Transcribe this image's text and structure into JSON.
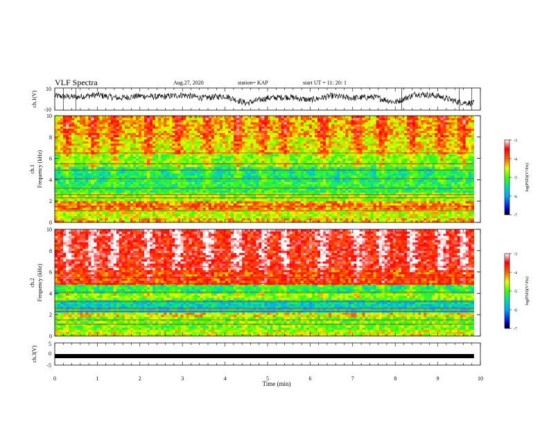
{
  "header": {
    "title": "VLF Spectra",
    "date": "Aug.27, 2020",
    "station": "station= KAP",
    "start_ut": "start  UT =   11: 20: 1"
  },
  "chart_data": [
    {
      "type": "line",
      "name": "ch1-waveform",
      "ylabel": "ch.1(V)",
      "ylim": [
        -10,
        10
      ],
      "yticks": [
        "10",
        "-10"
      ],
      "xlim": [
        0,
        10
      ],
      "values_note_x_min": [
        0,
        9.85
      ],
      "envelope": [
        {
          "x": 0.0,
          "y": 3
        },
        {
          "x": 0.5,
          "y": 2
        },
        {
          "x": 1.0,
          "y": 4
        },
        {
          "x": 1.5,
          "y": 1
        },
        {
          "x": 2.0,
          "y": 3
        },
        {
          "x": 2.5,
          "y": 2
        },
        {
          "x": 3.0,
          "y": 4
        },
        {
          "x": 3.5,
          "y": 1
        },
        {
          "x": 4.0,
          "y": 3
        },
        {
          "x": 4.5,
          "y": -4
        },
        {
          "x": 5.0,
          "y": 1
        },
        {
          "x": 5.5,
          "y": 2
        },
        {
          "x": 6.0,
          "y": -1
        },
        {
          "x": 6.5,
          "y": 3
        },
        {
          "x": 7.0,
          "y": 1
        },
        {
          "x": 7.5,
          "y": 2
        },
        {
          "x": 8.0,
          "y": -3
        },
        {
          "x": 8.5,
          "y": 5
        },
        {
          "x": 9.0,
          "y": 3
        },
        {
          "x": 9.5,
          "y": -3
        },
        {
          "x": 9.85,
          "y": -4
        }
      ]
    },
    {
      "type": "heatmap",
      "name": "ch1-spectrogram",
      "ylabel": "ch.1\nFrequency  (kHz)",
      "ylim": [
        0,
        10
      ],
      "yticks": [
        "0",
        "2",
        "4",
        "6",
        "8",
        "10"
      ],
      "xlim": [
        0,
        10
      ],
      "data_end_min": 9.85,
      "colorbar": {
        "label": "log(PSD)(V²/Hz)",
        "range": [
          -7,
          -3
        ],
        "ticks": [
          "-3",
          "-4",
          "-5",
          "-6",
          "-7"
        ]
      },
      "bands_log_psd": [
        {
          "f": [
            0,
            0.5
          ],
          "v": -4.3
        },
        {
          "f": [
            0.5,
            1.3
          ],
          "v": -4.6
        },
        {
          "f": [
            1.3,
            2.0
          ],
          "v": -4.1
        },
        {
          "f": [
            2.0,
            2.8
          ],
          "v": -4.8
        },
        {
          "f": [
            2.8,
            3.8
          ],
          "v": -5.2
        },
        {
          "f": [
            3.8,
            5.2
          ],
          "v": -5.4
        },
        {
          "f": [
            5.2,
            6.5
          ],
          "v": -4.9
        },
        {
          "f": [
            6.5,
            8.0
          ],
          "v": -4.5
        },
        {
          "f": [
            8.0,
            10.0
          ],
          "v": -4.3
        }
      ],
      "bursts_x_min": [
        0.3,
        0.9,
        1.4,
        2.2,
        2.9,
        3.6,
        4.3,
        4.9,
        5.4,
        6.3,
        7.1,
        7.7,
        8.4,
        9.1,
        9.6
      ]
    },
    {
      "type": "heatmap",
      "name": "ch2-spectrogram",
      "ylabel": "ch.2\nFrequency  (kHz)",
      "ylim": [
        0,
        10
      ],
      "yticks": [
        "0",
        "2",
        "4",
        "6",
        "8",
        "10"
      ],
      "xlim": [
        0,
        10
      ],
      "data_end_min": 9.85,
      "colorbar": {
        "label": "log(PSD)(V²/Hz)",
        "range": [
          -7,
          -3
        ],
        "ticks": [
          "-3",
          "-4",
          "-5",
          "-6",
          "-7"
        ]
      },
      "bands_log_psd": [
        {
          "f": [
            0,
            0.6
          ],
          "v": -4.6
        },
        {
          "f": [
            0.6,
            1.8
          ],
          "v": -4.9
        },
        {
          "f": [
            1.8,
            2.3
          ],
          "v": -4.4
        },
        {
          "f": [
            2.3,
            3.4
          ],
          "v": -5.6
        },
        {
          "f": [
            3.4,
            4.0
          ],
          "v": -4.8
        },
        {
          "f": [
            4.0,
            4.7
          ],
          "v": -5.3
        },
        {
          "f": [
            4.7,
            6.2
          ],
          "v": -3.9
        },
        {
          "f": [
            6.2,
            10.0
          ],
          "v": -3.6
        }
      ],
      "bursts_x_min": [
        0.3,
        0.9,
        1.4,
        2.2,
        2.9,
        3.6,
        4.3,
        4.9,
        5.4,
        6.3,
        7.1,
        7.7,
        8.4,
        9.1,
        9.6
      ]
    },
    {
      "type": "line",
      "name": "ch3-waveform",
      "ylabel": "ch.3(V)",
      "ylim": [
        -5,
        5
      ],
      "yticks": [
        "5",
        "0",
        "-5"
      ],
      "xlim": [
        0,
        10
      ],
      "values_note_x_min": [
        0,
        9.85
      ],
      "level": -1
    }
  ],
  "xaxis": {
    "label": "Time  (min)",
    "ticks": [
      "0",
      "1",
      "2",
      "3",
      "4",
      "5",
      "6",
      "7",
      "8",
      "9",
      "10"
    ]
  }
}
